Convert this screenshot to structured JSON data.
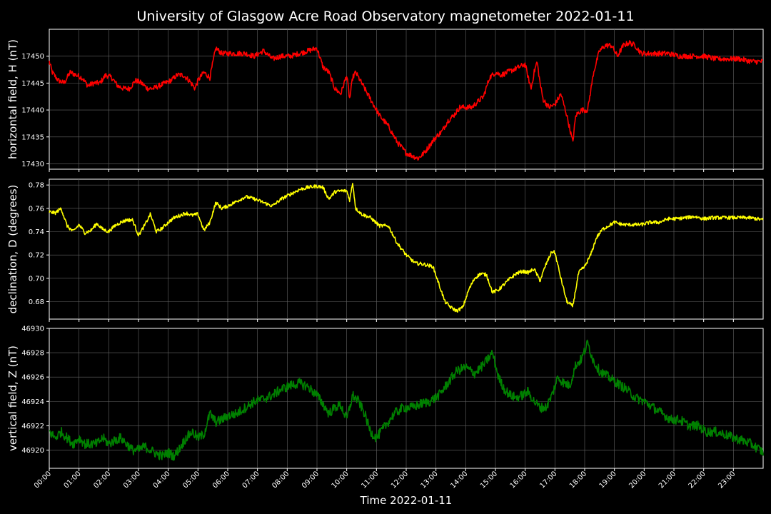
{
  "chart_data": {
    "type": "line",
    "title": "University of Glasgow Acre Road Observatory magnetometer 2022-01-11",
    "xlabel": "Time 2022-01-11",
    "x_ticks": [
      "00:00",
      "01:00",
      "02:00",
      "03:00",
      "04:00",
      "05:00",
      "06:00",
      "07:00",
      "08:00",
      "09:00",
      "10:00",
      "11:00",
      "12:00",
      "13:00",
      "14:00",
      "15:00",
      "16:00",
      "17:00",
      "18:00",
      "19:00",
      "20:00",
      "21:00",
      "22:00",
      "23:00"
    ],
    "xlim": [
      0,
      24
    ],
    "grid": true,
    "panels": [
      {
        "ylabel": "horizontal field, H (nT)",
        "color": "#ff0000",
        "ylim": [
          17429,
          17455
        ],
        "y_ticks": [
          "17430",
          "17435",
          "17440",
          "17445",
          "17450"
        ],
        "noise": 0.5,
        "x": [
          0,
          0.1,
          0.3,
          0.5,
          0.7,
          0.9,
          1.1,
          1.3,
          1.5,
          1.7,
          1.9,
          2.1,
          2.3,
          2.5,
          2.7,
          2.9,
          3.1,
          3.3,
          3.5,
          3.7,
          3.9,
          4.1,
          4.3,
          4.5,
          4.7,
          4.9,
          5.0,
          5.2,
          5.4,
          5.6,
          5.8,
          6.0,
          6.3,
          6.6,
          6.9,
          7.2,
          7.5,
          7.8,
          8.1,
          8.4,
          8.7,
          9.0,
          9.2,
          9.4,
          9.6,
          9.8,
          10.0,
          10.1,
          10.2,
          10.3,
          10.5,
          10.8,
          11.1,
          11.4,
          11.7,
          12.0,
          12.2,
          12.4,
          12.6,
          12.8,
          13.0,
          13.2,
          13.4,
          13.6,
          13.8,
          14.0,
          14.2,
          14.4,
          14.6,
          14.8,
          15.0,
          15.2,
          15.4,
          15.6,
          15.8,
          16.0,
          16.1,
          16.2,
          16.3,
          16.4,
          16.5,
          16.6,
          16.8,
          17.0,
          17.2,
          17.4,
          17.6,
          17.7,
          17.9,
          18.1,
          18.3,
          18.5,
          18.7,
          18.9,
          19.1,
          19.3,
          19.5,
          19.7,
          19.9,
          20.1,
          20.4,
          20.8,
          21.2,
          21.6,
          22.0,
          22.4,
          22.8,
          23.2,
          23.6,
          24.0
        ],
        "y": [
          17449,
          17447,
          17445.5,
          17445,
          17447,
          17446.5,
          17446,
          17444.5,
          17445,
          17445,
          17446.5,
          17446,
          17444.5,
          17444,
          17444,
          17445.5,
          17445,
          17444,
          17444,
          17444.5,
          17445,
          17445.5,
          17446.5,
          17446.5,
          17445.5,
          17444,
          17445.5,
          17447,
          17446,
          17451.5,
          17450.5,
          17450.5,
          17450.5,
          17450.5,
          17450,
          17451,
          17449.5,
          17450,
          17450,
          17450.5,
          17451,
          17451.5,
          17448,
          17447,
          17444,
          17443,
          17446.5,
          17442,
          17446,
          17447,
          17445,
          17442,
          17439,
          17437,
          17434,
          17432,
          17431.5,
          17431,
          17432,
          17433.5,
          17435,
          17436,
          17438,
          17439,
          17440.5,
          17440.5,
          17440.5,
          17441.5,
          17442.5,
          17446,
          17447,
          17446.5,
          17447,
          17447.5,
          17448,
          17448.5,
          17446,
          17444,
          17447,
          17449,
          17445,
          17442,
          17440.5,
          17441,
          17443,
          17439,
          17434,
          17439,
          17440,
          17440,
          17447,
          17451,
          17452,
          17452,
          17450,
          17452,
          17452.5,
          17452,
          17450.5,
          17450.5,
          17450.5,
          17450.5,
          17450,
          17450,
          17450,
          17449.5,
          17449.5,
          17449.5,
          17449,
          17449
        ]
      },
      {
        "ylabel": "declination, D (degrees)",
        "color": "#ffff00",
        "ylim": [
          0.665,
          0.785
        ],
        "y_ticks": [
          "0.68",
          "0.70",
          "0.72",
          "0.74",
          "0.76",
          "0.78"
        ],
        "noise": 0.0015,
        "x": [
          0,
          0.2,
          0.4,
          0.6,
          0.8,
          1.0,
          1.2,
          1.4,
          1.6,
          1.8,
          2.0,
          2.2,
          2.4,
          2.6,
          2.8,
          3.0,
          3.2,
          3.4,
          3.6,
          3.8,
          4.0,
          4.2,
          4.4,
          4.6,
          4.8,
          5.0,
          5.2,
          5.4,
          5.6,
          5.8,
          6.0,
          6.3,
          6.6,
          6.9,
          7.2,
          7.5,
          7.8,
          8.1,
          8.4,
          8.7,
          9.0,
          9.2,
          9.4,
          9.6,
          9.8,
          10.0,
          10.1,
          10.2,
          10.3,
          10.5,
          10.8,
          11.1,
          11.4,
          11.7,
          12.0,
          12.3,
          12.6,
          12.9,
          13.1,
          13.3,
          13.5,
          13.7,
          13.9,
          14.1,
          14.3,
          14.5,
          14.7,
          14.9,
          15.1,
          15.3,
          15.5,
          15.7,
          15.9,
          16.1,
          16.3,
          16.5,
          16.7,
          16.9,
          17.0,
          17.2,
          17.4,
          17.6,
          17.8,
          18.0,
          18.2,
          18.4,
          18.6,
          18.8,
          19.0,
          19.3,
          19.6,
          19.9,
          20.2,
          20.5,
          20.8,
          21.1,
          21.4,
          21.7,
          22.0,
          22.3,
          22.6,
          22.9,
          23.2,
          23.5,
          23.8,
          24.0
        ],
        "y": [
          0.757,
          0.756,
          0.76,
          0.745,
          0.74,
          0.746,
          0.739,
          0.741,
          0.747,
          0.742,
          0.74,
          0.745,
          0.748,
          0.75,
          0.75,
          0.737,
          0.745,
          0.755,
          0.74,
          0.743,
          0.748,
          0.752,
          0.754,
          0.756,
          0.754,
          0.755,
          0.741,
          0.748,
          0.765,
          0.76,
          0.762,
          0.766,
          0.77,
          0.768,
          0.765,
          0.762,
          0.768,
          0.772,
          0.776,
          0.778,
          0.779,
          0.778,
          0.768,
          0.774,
          0.775,
          0.775,
          0.767,
          0.782,
          0.76,
          0.755,
          0.752,
          0.745,
          0.745,
          0.73,
          0.72,
          0.713,
          0.712,
          0.71,
          0.695,
          0.68,
          0.675,
          0.672,
          0.675,
          0.69,
          0.7,
          0.704,
          0.703,
          0.688,
          0.69,
          0.695,
          0.7,
          0.704,
          0.706,
          0.705,
          0.708,
          0.698,
          0.712,
          0.723,
          0.722,
          0.7,
          0.68,
          0.676,
          0.705,
          0.71,
          0.72,
          0.735,
          0.742,
          0.745,
          0.748,
          0.746,
          0.746,
          0.746,
          0.748,
          0.748,
          0.751,
          0.751,
          0.752,
          0.753,
          0.751,
          0.752,
          0.752,
          0.752,
          0.752,
          0.752,
          0.751,
          0.75
        ]
      },
      {
        "ylabel": "vertical field, Z (nT)",
        "color": "#008000",
        "ylim": [
          46918.5,
          46930
        ],
        "y_ticks": [
          "46920",
          "46922",
          "46924",
          "46926",
          "46928",
          "46930"
        ],
        "noise": 0.4,
        "x": [
          0,
          0.2,
          0.4,
          0.6,
          0.8,
          1.0,
          1.2,
          1.4,
          1.6,
          1.8,
          2.0,
          2.2,
          2.4,
          2.6,
          2.8,
          3.0,
          3.2,
          3.4,
          3.6,
          3.8,
          4.0,
          4.2,
          4.4,
          4.6,
          4.8,
          5.0,
          5.2,
          5.4,
          5.6,
          5.8,
          6.0,
          6.3,
          6.6,
          6.9,
          7.2,
          7.5,
          7.8,
          8.1,
          8.4,
          8.7,
          9.0,
          9.2,
          9.4,
          9.6,
          9.8,
          10.0,
          10.2,
          10.4,
          10.6,
          10.8,
          11.0,
          11.3,
          11.6,
          11.9,
          12.2,
          12.5,
          12.8,
          13.1,
          13.4,
          13.7,
          14.0,
          14.3,
          14.6,
          14.9,
          15.1,
          15.3,
          15.5,
          15.7,
          15.9,
          16.1,
          16.3,
          16.5,
          16.7,
          16.9,
          17.1,
          17.3,
          17.5,
          17.7,
          17.9,
          18.1,
          18.3,
          18.5,
          18.8,
          19.1,
          19.4,
          19.7,
          20.0,
          20.3,
          20.6,
          20.9,
          21.2,
          21.5,
          21.8,
          22.1,
          22.4,
          22.7,
          23.0,
          23.3,
          23.6,
          23.9,
          24.0
        ],
        "y": [
          46921.5,
          46921,
          46921.5,
          46921,
          46920.5,
          46921,
          46920.5,
          46920.5,
          46920.5,
          46921,
          46920.5,
          46920.8,
          46921,
          46920.5,
          46920,
          46920,
          46920.3,
          46920,
          46919.7,
          46919.5,
          46919.8,
          46919.5,
          46920.2,
          46921,
          46921.5,
          46921,
          46921.3,
          46923,
          46922.3,
          46922.5,
          46922.8,
          46923,
          46923.5,
          46924,
          46924.2,
          46924.5,
          46925,
          46925.3,
          46925.5,
          46925.2,
          46924.5,
          46923.8,
          46923,
          46923.5,
          46923.7,
          46922.5,
          46924.5,
          46924,
          46923,
          46921.5,
          46921,
          46922,
          46923,
          46923.5,
          46923.5,
          46923.8,
          46924,
          46924.5,
          46925.5,
          46926.5,
          46926.8,
          46926.3,
          46927,
          46928,
          46926,
          46925,
          46924.5,
          46924.3,
          46924.5,
          46924.8,
          46924,
          46923.5,
          46923.5,
          46924.5,
          46926,
          46925.5,
          46925.3,
          46927,
          46927.5,
          46928.8,
          46927.3,
          46926.5,
          46926,
          46925.5,
          46925,
          46924.3,
          46924,
          46923.5,
          46923,
          46922.5,
          46922.5,
          46922,
          46922,
          46921.5,
          46921.5,
          46921.3,
          46921,
          46920.8,
          46920.5,
          46920,
          46919.8
        ]
      }
    ]
  }
}
